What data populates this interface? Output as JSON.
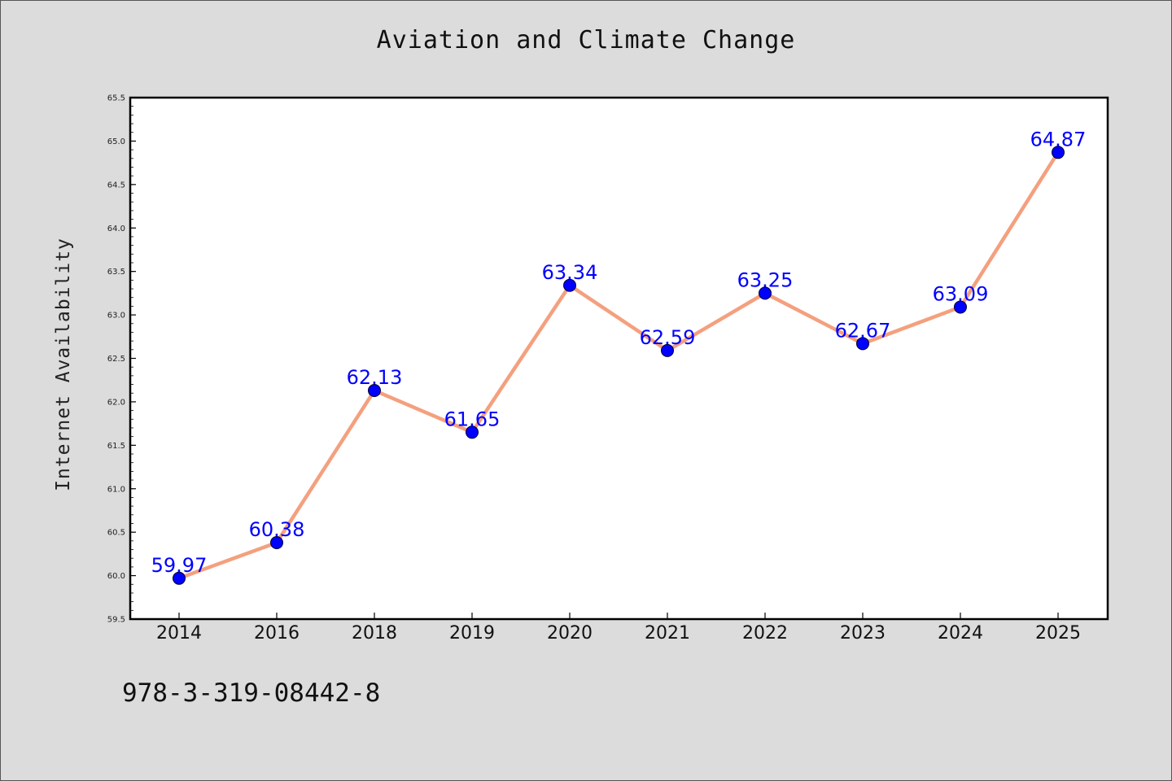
{
  "chart_data": {
    "type": "line",
    "title": "Aviation and Climate Change",
    "ylabel": "Internet Availability",
    "xlabel": "",
    "categories": [
      "2014",
      "2016",
      "2018",
      "2019",
      "2020",
      "2021",
      "2022",
      "2023",
      "2024",
      "2025"
    ],
    "values": [
      59.97,
      60.38,
      62.13,
      61.65,
      63.34,
      62.59,
      63.25,
      62.67,
      63.09,
      64.87
    ],
    "data_labels": [
      "59.97",
      "60.38",
      "62.13",
      "61.65",
      "63.34",
      "62.59",
      "63.25",
      "62.67",
      "63.09",
      "64.87"
    ],
    "ylim": [
      59.5,
      65.5
    ],
    "yticks": [
      "59.5",
      "60.0",
      "60.5",
      "61.0",
      "61.5",
      "62.0",
      "62.5",
      "63.0",
      "63.5",
      "64.0",
      "64.5",
      "65.0",
      "65.5"
    ],
    "grid": false,
    "line_color": "#f4a07e",
    "marker_color": "#0000ff",
    "label_color": "#0000ff"
  },
  "footer": {
    "isbn": "978-3-319-08442-8"
  }
}
